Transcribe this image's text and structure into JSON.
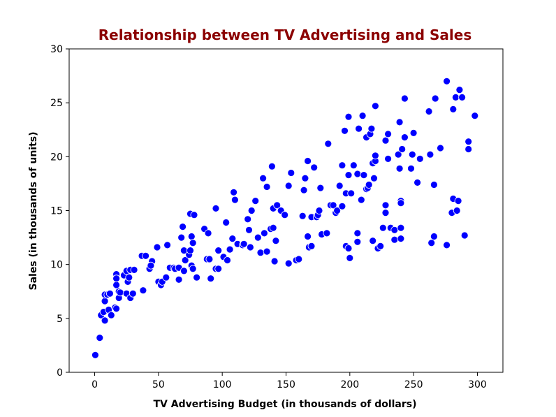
{
  "chart_data": {
    "type": "scatter",
    "title": "Relationship between TV Advertising and Sales",
    "title_color": "#8b0000",
    "xlabel": "TV Advertising Budget (in thousands of dollars)",
    "ylabel": "Sales (in thousands of units)",
    "xlim": [
      -20,
      320
    ],
    "ylim": [
      0,
      30
    ],
    "xticks": [
      0,
      50,
      100,
      150,
      200,
      250,
      300
    ],
    "yticks": [
      0,
      5,
      10,
      15,
      20,
      25,
      30
    ],
    "grid": false,
    "marker_color": "#0000ff",
    "marker_edge_color": "#ffffff",
    "points": [
      [
        0.5,
        1.6
      ],
      [
        4,
        3.2
      ],
      [
        5,
        5.3
      ],
      [
        7,
        5.6
      ],
      [
        8,
        6.6
      ],
      [
        8,
        7.2
      ],
      [
        10,
        7.2
      ],
      [
        12,
        7.3
      ],
      [
        8,
        4.8
      ],
      [
        11,
        5.8
      ],
      [
        13,
        5.3
      ],
      [
        16,
        6.0
      ],
      [
        17,
        5.9
      ],
      [
        17,
        8.1
      ],
      [
        17,
        9.1
      ],
      [
        17,
        8.7
      ],
      [
        19,
        6.9
      ],
      [
        19,
        7.5
      ],
      [
        20,
        7.4
      ],
      [
        23,
        9.0
      ],
      [
        25,
        9.4
      ],
      [
        25,
        7.3
      ],
      [
        26,
        8.4
      ],
      [
        27,
        8.8
      ],
      [
        28,
        6.9
      ],
      [
        28,
        9.5
      ],
      [
        30,
        7.3
      ],
      [
        31,
        9.5
      ],
      [
        37,
        10.8
      ],
      [
        38,
        7.6
      ],
      [
        40,
        10.8
      ],
      [
        43,
        9.6
      ],
      [
        45,
        10.3
      ],
      [
        44,
        9.9
      ],
      [
        49,
        11.6
      ],
      [
        50,
        8.4
      ],
      [
        52,
        8.1
      ],
      [
        53,
        8.4
      ],
      [
        56,
        8.8
      ],
      [
        57,
        11.8
      ],
      [
        59,
        9.7
      ],
      [
        62,
        9.7
      ],
      [
        63,
        9.6
      ],
      [
        66,
        8.6
      ],
      [
        66,
        9.7
      ],
      [
        68,
        12.5
      ],
      [
        69,
        13.5
      ],
      [
        70,
        11.3
      ],
      [
        70,
        9.4
      ],
      [
        71,
        10.4
      ],
      [
        74,
        10.9
      ],
      [
        75,
        14.7
      ],
      [
        75,
        11.3
      ],
      [
        76,
        12.6
      ],
      [
        76,
        9.9
      ],
      [
        77,
        12.0
      ],
      [
        77,
        9.6
      ],
      [
        78,
        14.6
      ],
      [
        80,
        8.8
      ],
      [
        86,
        13.3
      ],
      [
        88,
        10.5
      ],
      [
        89,
        12.9
      ],
      [
        90,
        10.5
      ],
      [
        91,
        8.7
      ],
      [
        95,
        15.2
      ],
      [
        95,
        9.6
      ],
      [
        97,
        9.6
      ],
      [
        97,
        11.3
      ],
      [
        101,
        10.7
      ],
      [
        103,
        13.9
      ],
      [
        104,
        10.4
      ],
      [
        106,
        11.4
      ],
      [
        108,
        12.4
      ],
      [
        109,
        16.7
      ],
      [
        110,
        16.0
      ],
      [
        112,
        11.9
      ],
      [
        116,
        11.8
      ],
      [
        117,
        11.9
      ],
      [
        120,
        14.2
      ],
      [
        121,
        13.2
      ],
      [
        122,
        11.6
      ],
      [
        123,
        15.0
      ],
      [
        126,
        15.9
      ],
      [
        128,
        12.5
      ],
      [
        130,
        11.1
      ],
      [
        132,
        18.0
      ],
      [
        133,
        12.9
      ],
      [
        135,
        17.2
      ],
      [
        135,
        11.2
      ],
      [
        138,
        13.3
      ],
      [
        139,
        19.1
      ],
      [
        140,
        13.4
      ],
      [
        140,
        15.2
      ],
      [
        141,
        10.3
      ],
      [
        142,
        12.2
      ],
      [
        143,
        15.5
      ],
      [
        146,
        15.0
      ],
      [
        149,
        14.6
      ],
      [
        152,
        17.3
      ],
      [
        152,
        10.1
      ],
      [
        154,
        18.5
      ],
      [
        158,
        10.4
      ],
      [
        160,
        10.5
      ],
      [
        163,
        14.5
      ],
      [
        164,
        16.9
      ],
      [
        165,
        18.0
      ],
      [
        167,
        12.6
      ],
      [
        167,
        19.6
      ],
      [
        168,
        11.6
      ],
      [
        170,
        11.7
      ],
      [
        170,
        14.4
      ],
      [
        172,
        19.0
      ],
      [
        174,
        14.4
      ],
      [
        175,
        14.6
      ],
      [
        176,
        15.0
      ],
      [
        177,
        17.1
      ],
      [
        178,
        12.8
      ],
      [
        182,
        12.9
      ],
      [
        183,
        21.2
      ],
      [
        185,
        15.5
      ],
      [
        187,
        15.5
      ],
      [
        189,
        14.8
      ],
      [
        190,
        15.0
      ],
      [
        192,
        17.3
      ],
      [
        194,
        15.4
      ],
      [
        194,
        19.2
      ],
      [
        196,
        22.4
      ],
      [
        197,
        11.7
      ],
      [
        197,
        16.6
      ],
      [
        199,
        23.7
      ],
      [
        199,
        11.5
      ],
      [
        199,
        18.3
      ],
      [
        200,
        10.6
      ],
      [
        201,
        16.6
      ],
      [
        203,
        19.2
      ],
      [
        206,
        18.4
      ],
      [
        206,
        12.1
      ],
      [
        206,
        12.9
      ],
      [
        207,
        22.6
      ],
      [
        209,
        16.0
      ],
      [
        210,
        23.8
      ],
      [
        211,
        18.3
      ],
      [
        213,
        17.0
      ],
      [
        213,
        21.8
      ],
      [
        214,
        17.1
      ],
      [
        215,
        17.4
      ],
      [
        216,
        22.1
      ],
      [
        217,
        22.6
      ],
      [
        218,
        12.2
      ],
      [
        218,
        19.4
      ],
      [
        219,
        18.0
      ],
      [
        220,
        24.7
      ],
      [
        220,
        19.6
      ],
      [
        220,
        20.1
      ],
      [
        222,
        11.5
      ],
      [
        224,
        11.7
      ],
      [
        226,
        13.4
      ],
      [
        228,
        21.5
      ],
      [
        228,
        15.5
      ],
      [
        228,
        14.8
      ],
      [
        230,
        19.8
      ],
      [
        230,
        22.1
      ],
      [
        232,
        13.4
      ],
      [
        235,
        12.3
      ],
      [
        235,
        13.2
      ],
      [
        238,
        20.2
      ],
      [
        239,
        18.9
      ],
      [
        239,
        23.2
      ],
      [
        240,
        15.9
      ],
      [
        240,
        15.7
      ],
      [
        240,
        12.4
      ],
      [
        240,
        13.4
      ],
      [
        241,
        20.7
      ],
      [
        243,
        21.8
      ],
      [
        243,
        25.4
      ],
      [
        248,
        18.9
      ],
      [
        249,
        20.2
      ],
      [
        250,
        22.2
      ],
      [
        253,
        17.6
      ],
      [
        255,
        19.8
      ],
      [
        262,
        24.2
      ],
      [
        263,
        20.2
      ],
      [
        264,
        12.0
      ],
      [
        266,
        12.6
      ],
      [
        266,
        17.4
      ],
      [
        267,
        25.4
      ],
      [
        271,
        20.8
      ],
      [
        276,
        27.0
      ],
      [
        276,
        11.8
      ],
      [
        280,
        14.8
      ],
      [
        281,
        16.1
      ],
      [
        281,
        24.4
      ],
      [
        283,
        25.5
      ],
      [
        284,
        15.0
      ],
      [
        285,
        15.9
      ],
      [
        286,
        26.2
      ],
      [
        288,
        25.5
      ],
      [
        290,
        12.7
      ],
      [
        293,
        21.4
      ],
      [
        293,
        20.7
      ],
      [
        298,
        23.8
      ]
    ]
  }
}
